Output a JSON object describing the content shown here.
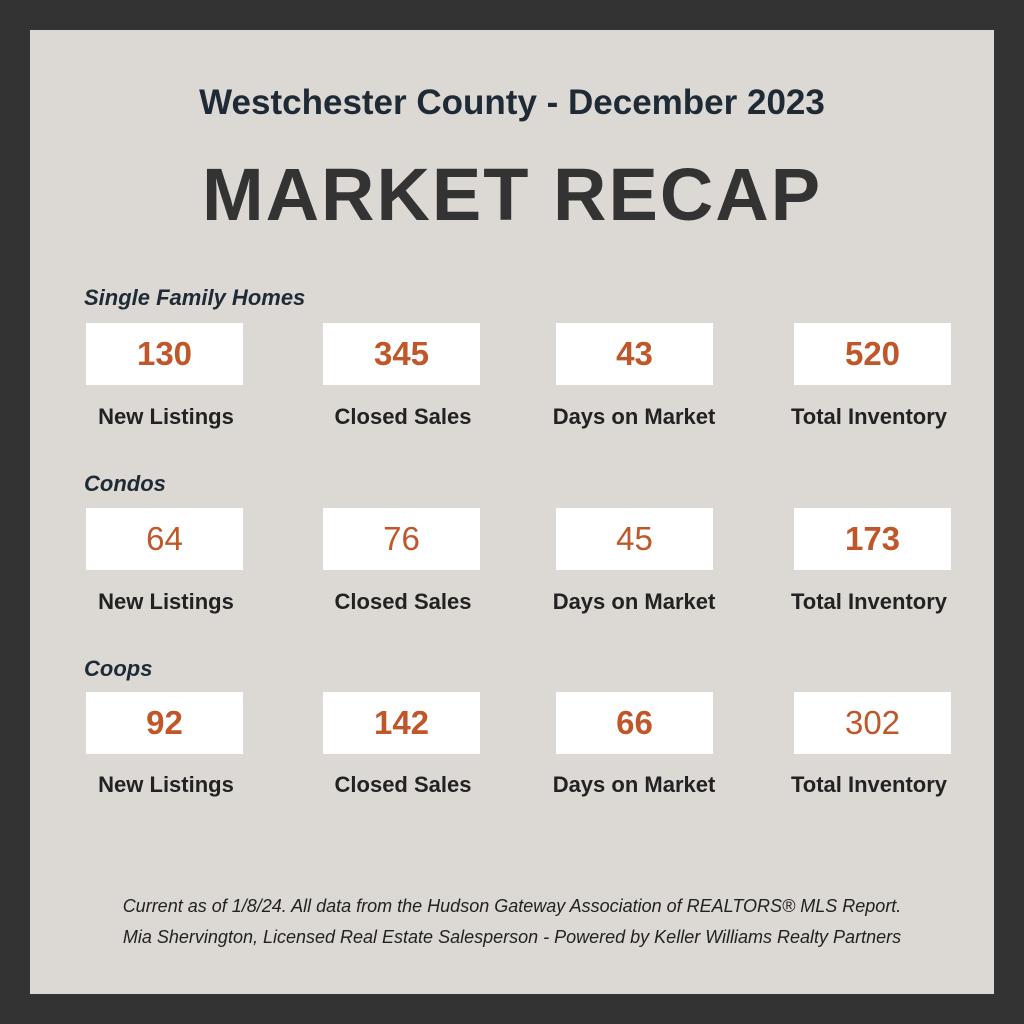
{
  "header": {
    "subtitle": "Westchester County - December 2023",
    "title": "MARKET RECAP"
  },
  "sections": [
    {
      "label": "Single Family Homes",
      "stats": [
        {
          "value": "130",
          "label": "New Listings"
        },
        {
          "value": "345",
          "label": "Closed Sales"
        },
        {
          "value": "43",
          "label": "Days on Market"
        },
        {
          "value": "520",
          "label": "Total Inventory"
        }
      ]
    },
    {
      "label": "Condos",
      "stats": [
        {
          "value": "64",
          "label": "New Listings"
        },
        {
          "value": "76",
          "label": "Closed Sales"
        },
        {
          "value": "45",
          "label": "Days on Market"
        },
        {
          "value": "173",
          "label": "Total Inventory"
        }
      ]
    },
    {
      "label": "Coops",
      "stats": [
        {
          "value": "92",
          "label": "New Listings"
        },
        {
          "value": "142",
          "label": "Closed Sales"
        },
        {
          "value": "66",
          "label": "Days on Market"
        },
        {
          "value": "302",
          "label": "Total Inventory"
        }
      ]
    }
  ],
  "footer": {
    "line1": "Current as of 1/8/24. All data from the Hudson Gateway Association of REALTORS® MLS Report.",
    "line2": "Mia Shervington, Licensed Real Estate Salesperson - Powered by Keller Williams Realty Partners"
  },
  "colors": {
    "frame": "#333333",
    "panel": "#dcd8d3",
    "value": "#c0572a",
    "heading": "#1e2a36"
  }
}
